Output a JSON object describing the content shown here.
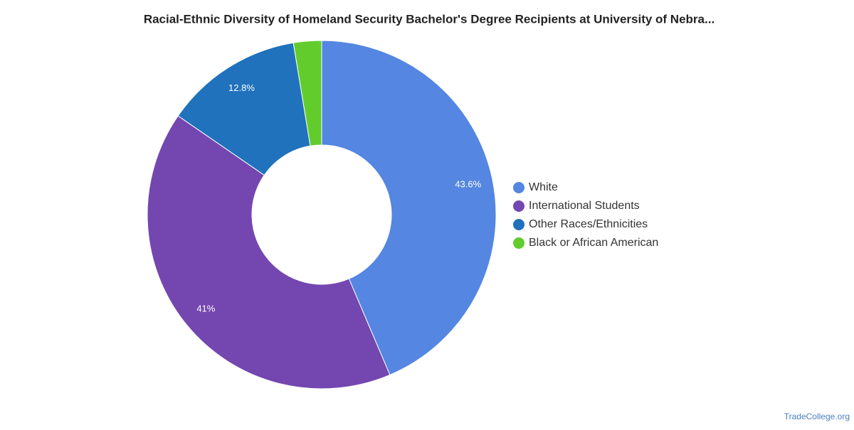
{
  "chart_data": {
    "type": "pie",
    "title": "Racial-Ethnic Diversity of Homeland Security Bachelor's Degree Recipients at University of Nebra...",
    "categories": [
      "White",
      "International Students",
      "Other Races/Ethnicities",
      "Black or African American"
    ],
    "values": [
      43.6,
      41,
      12.8,
      2.6
    ],
    "value_labels": [
      "43.6%",
      "41%",
      "12.8%",
      null
    ],
    "colors": [
      "#5486e2",
      "#7447b0",
      "#1f72bb",
      "#62cc2c"
    ],
    "donut": true,
    "legend": "right",
    "source": "TradeCollege.org"
  }
}
